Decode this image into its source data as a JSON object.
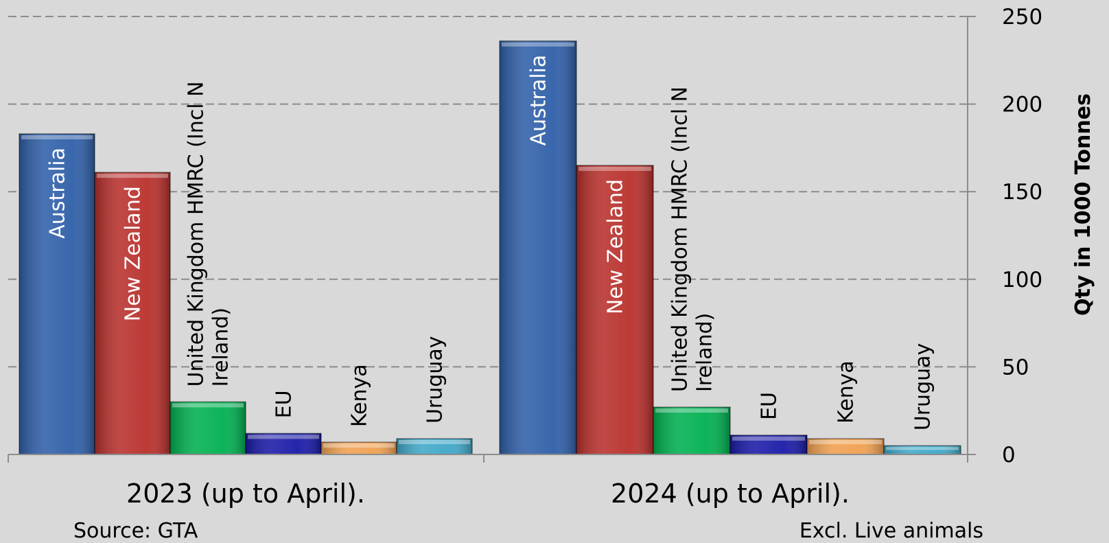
{
  "chart_data": {
    "type": "bar",
    "ylabel": "Qty in 1000 Tonnes",
    "ylim": [
      0,
      250
    ],
    "yticks": [
      0,
      50,
      100,
      150,
      200,
      250
    ],
    "y_axis_side": "right",
    "grid": "horizontal-dashed",
    "categories": [
      "2023 (up to April).",
      "2024 (up to April)."
    ],
    "series": [
      {
        "name": "Australia",
        "values": [
          183,
          236
        ],
        "color": "#2f5fa8",
        "label_color": "#ffffff",
        "label_inside": true
      },
      {
        "name": "New Zealand",
        "values": [
          161,
          165
        ],
        "color": "#b8302c",
        "label_color": "#ffffff",
        "label_inside": true
      },
      {
        "name": "United Kingdom HMRC (Incl N Ireland)",
        "lines": [
          "United Kingdom HMRC (Incl N",
          "Ireland)"
        ],
        "values": [
          30,
          27
        ],
        "color": "#00b050",
        "label_color": "#000000",
        "label_inside": false
      },
      {
        "name": "EU",
        "values": [
          12,
          11
        ],
        "color": "#1a1aa8",
        "label_color": "#000000",
        "label_inside": false
      },
      {
        "name": "Kenya",
        "values": [
          7,
          9
        ],
        "color": "#f0a050",
        "label_color": "#000000",
        "label_inside": false
      },
      {
        "name": "Uruguay",
        "values": [
          9,
          5
        ],
        "color": "#3fa8c8",
        "label_color": "#000000",
        "label_inside": false
      }
    ]
  },
  "footer": {
    "source": "Source: GTA",
    "note": "Excl. Live animals"
  }
}
